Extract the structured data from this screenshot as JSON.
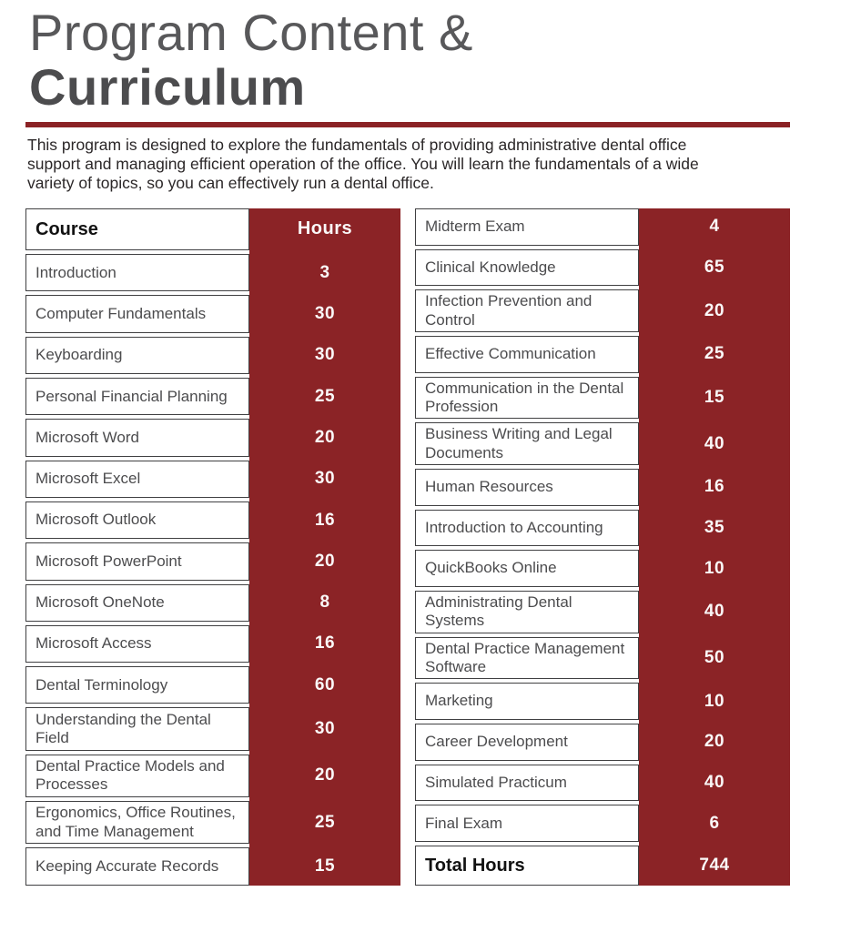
{
  "page": {
    "title_line1": "Program Content &",
    "title_line2": "Curriculum",
    "intro_lines": [
      "This program is designed to explore the fundamentals of providing administrative dental office",
      "support and managing efficient operation of the office. You will learn the fundamentals of a wide",
      "variety of topics, so you can effectively run a dental office."
    ]
  },
  "colors": {
    "maroon": "#8B2326",
    "rule": "#8B2225",
    "title-gray": "#58585A",
    "title-dark": "#4C4C4E",
    "text-dark": "#2B2728",
    "course-text": "#4C4C4E",
    "cell-border": "#404042",
    "hours-text": "#FAF8F8",
    "header-text": "#121212"
  },
  "tables": {
    "left": {
      "header": {
        "course": "Course",
        "hours": "Hours"
      },
      "rows": [
        {
          "course": "Introduction",
          "hours": "3"
        },
        {
          "course": "Computer Fundamentals",
          "hours": "30"
        },
        {
          "course": "Keyboarding",
          "hours": "30"
        },
        {
          "course": "Personal Financial Planning",
          "hours": "25"
        },
        {
          "course": "Microsoft Word",
          "hours": "20"
        },
        {
          "course": "Microsoft Excel",
          "hours": "30"
        },
        {
          "course": "Microsoft Outlook",
          "hours": "16"
        },
        {
          "course": "Microsoft PowerPoint",
          "hours": "20"
        },
        {
          "course": "Microsoft OneNote",
          "hours": "8"
        },
        {
          "course": "Microsoft Access",
          "hours": "16"
        },
        {
          "course": "Dental Terminology",
          "hours": "60"
        },
        {
          "course": "Understanding the Dental Field",
          "hours": "30",
          "tall": true
        },
        {
          "course": "Dental Practice Models and Processes",
          "hours": "20",
          "tall": true
        },
        {
          "course": "Ergonomics, Office Routines, and Time Management",
          "hours": "25",
          "tall": true
        },
        {
          "course": "Keeping Accurate Records",
          "hours": "15"
        }
      ]
    },
    "right": {
      "rows": [
        {
          "course": "Midterm Exam",
          "hours": "4"
        },
        {
          "course": "Clinical Knowledge",
          "hours": "65"
        },
        {
          "course": "Infection Prevention and Control",
          "hours": "20",
          "tall": true
        },
        {
          "course": "Effective Communication",
          "hours": "25"
        },
        {
          "course": "Communication in the Dental Profession",
          "hours": "15",
          "tall": true
        },
        {
          "course": "Business Writing and Legal Documents",
          "hours": "40",
          "tall": true
        },
        {
          "course": "Human Resources",
          "hours": "16"
        },
        {
          "course": "Introduction to Accounting",
          "hours": "35"
        },
        {
          "course": "QuickBooks Online",
          "hours": "10"
        },
        {
          "course": "Administrating Dental Systems",
          "hours": "40",
          "tall": true
        },
        {
          "course": "Dental Practice Management Software",
          "hours": "50",
          "tall": true
        },
        {
          "course": "Marketing",
          "hours": "10"
        },
        {
          "course": "Career Development",
          "hours": "20"
        },
        {
          "course": "Simulated Practicum",
          "hours": "40"
        },
        {
          "course": "Final Exam",
          "hours": "6"
        }
      ],
      "total": {
        "label": "Total Hours",
        "hours": "744"
      }
    }
  }
}
